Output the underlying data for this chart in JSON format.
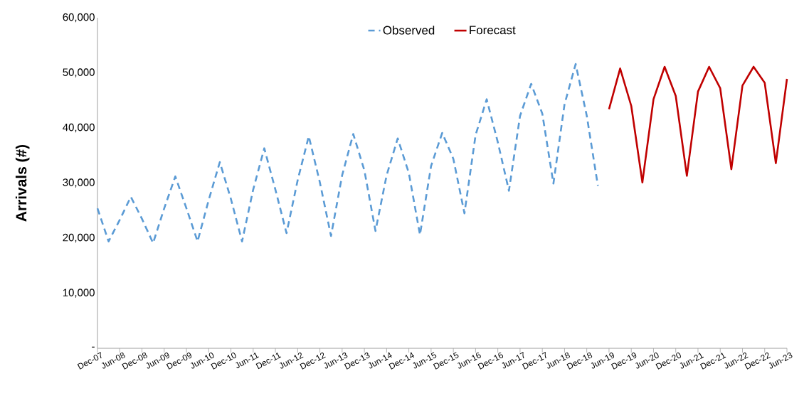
{
  "chart_data": {
    "type": "line",
    "ylabel": "Arrivals (#)",
    "categories": [
      "Dec-07",
      null,
      "Jun-08",
      null,
      "Dec-08",
      null,
      "Jun-09",
      null,
      "Dec-09",
      null,
      "Jun-10",
      null,
      "Dec-10",
      null,
      "Jun-11",
      null,
      "Dec-11",
      null,
      "Jun-12",
      null,
      "Dec-12",
      null,
      "Jun-13",
      null,
      "Dec-13",
      null,
      "Jun-14",
      null,
      "Dec-14",
      null,
      "Jun-15",
      null,
      "Dec-15",
      null,
      "Jun-16",
      null,
      "Dec-16",
      null,
      "Jun-17",
      null,
      "Dec-17",
      null,
      "Jun-18",
      null,
      "Dec-18",
      null,
      "Jun-19",
      null,
      "Dec-19",
      null,
      "Jun-20",
      null,
      "Dec-20",
      null,
      "Jun-21",
      null,
      "Dec-21",
      null,
      "Jun-22",
      null,
      "Dec-22",
      null,
      "Jun-23"
    ],
    "series": [
      {
        "name": "Observed",
        "color": "#5b9bd5",
        "line_style": "dashed",
        "values": [
          25400,
          19400,
          23300,
          27500,
          23500,
          19100,
          25400,
          31200,
          25400,
          19400,
          26900,
          33800,
          27100,
          19400,
          28800,
          36300,
          28800,
          20900,
          30500,
          38500,
          30100,
          20400,
          31400,
          38900,
          32300,
          21300,
          31400,
          38100,
          31800,
          20600,
          33100,
          39100,
          34400,
          24500,
          38700,
          45200,
          37400,
          28600,
          42200,
          48000,
          42600,
          29900,
          44300,
          51600,
          42200,
          29500,
          null,
          null,
          null,
          null,
          null,
          null,
          null,
          null,
          null,
          null,
          null,
          null,
          null,
          null,
          null,
          null,
          null
        ]
      },
      {
        "name": "Forecast",
        "color": "#c00000",
        "line_style": "solid",
        "values": [
          null,
          null,
          null,
          null,
          null,
          null,
          null,
          null,
          null,
          null,
          null,
          null,
          null,
          null,
          null,
          null,
          null,
          null,
          null,
          null,
          null,
          null,
          null,
          null,
          null,
          null,
          null,
          null,
          null,
          null,
          null,
          null,
          null,
          null,
          null,
          null,
          null,
          null,
          null,
          null,
          null,
          null,
          null,
          null,
          null,
          null,
          43400,
          50800,
          44000,
          30100,
          45200,
          51100,
          45800,
          31300,
          46600,
          51100,
          47200,
          32500,
          47700,
          51100,
          48200,
          33600,
          48900
        ]
      }
    ],
    "ylim": [
      0,
      60000
    ],
    "yticks": [
      {
        "value": 0,
        "label": "-"
      },
      {
        "value": 10000,
        "label": "10,000"
      },
      {
        "value": 20000,
        "label": "20,000"
      },
      {
        "value": 30000,
        "label": "30,000"
      },
      {
        "value": 40000,
        "label": "40,000"
      },
      {
        "value": 50000,
        "label": "50,000"
      },
      {
        "value": 60000,
        "label": "60,000"
      }
    ],
    "legend": "top",
    "marker": "none"
  }
}
